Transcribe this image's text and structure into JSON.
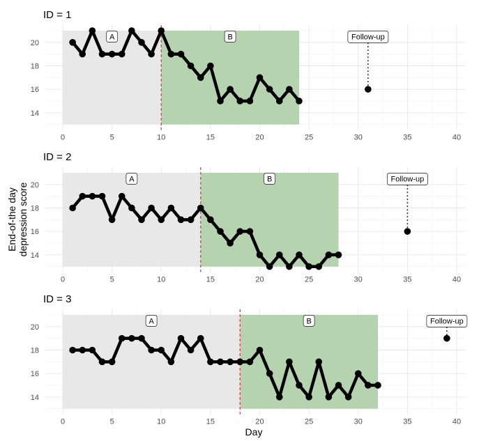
{
  "chart_data": {
    "type": "line",
    "xlabel": "Day",
    "ylabel_line1": "End-of-the day",
    "ylabel_line2": "depression score",
    "xlim": [
      0,
      40
    ],
    "ylim": [
      13,
      21
    ],
    "x_ticks": [
      0,
      5,
      10,
      15,
      20,
      25,
      30,
      35,
      40
    ],
    "y_ticks": [
      14,
      16,
      18,
      20
    ],
    "phase_colors": {
      "A": "#e5e5e5",
      "B": "#b5d3ae"
    },
    "line_color": "#000000",
    "phase_line_color": "#e0434b",
    "panels": [
      {
        "title": "ID = 1",
        "phase_change": 10,
        "last_day": 24,
        "phase_labels": [
          "A",
          "B"
        ],
        "values": [
          20,
          19,
          21,
          19,
          19,
          19,
          21,
          20,
          19,
          21,
          19,
          19,
          18,
          17,
          18,
          15,
          16,
          15,
          15,
          17,
          16,
          15,
          16,
          15
        ],
        "followup": {
          "label": "Follow-up",
          "day": 31,
          "value": 16
        }
      },
      {
        "title": "ID = 2",
        "phase_change": 14,
        "last_day": 28,
        "phase_labels": [
          "A",
          "B"
        ],
        "values": [
          18,
          19,
          19,
          19,
          17,
          19,
          18,
          17,
          18,
          17,
          18,
          17,
          17,
          18,
          17,
          16,
          15,
          16,
          16,
          14,
          13,
          14,
          13,
          14,
          13,
          13,
          14,
          14
        ],
        "followup": {
          "label": "Follow-up",
          "day": 35,
          "value": 16
        }
      },
      {
        "title": "ID = 3",
        "phase_change": 18,
        "last_day": 32,
        "phase_labels": [
          "A",
          "B"
        ],
        "values": [
          18,
          18,
          18,
          17,
          17,
          19,
          19,
          19,
          18,
          18,
          17,
          19,
          18,
          19,
          17,
          17,
          17,
          17,
          17,
          18,
          16,
          14,
          17,
          15,
          14,
          17,
          14,
          15,
          14,
          16,
          15,
          15
        ],
        "followup": {
          "label": "Follow-up",
          "day": 39,
          "value": 19
        }
      }
    ]
  }
}
